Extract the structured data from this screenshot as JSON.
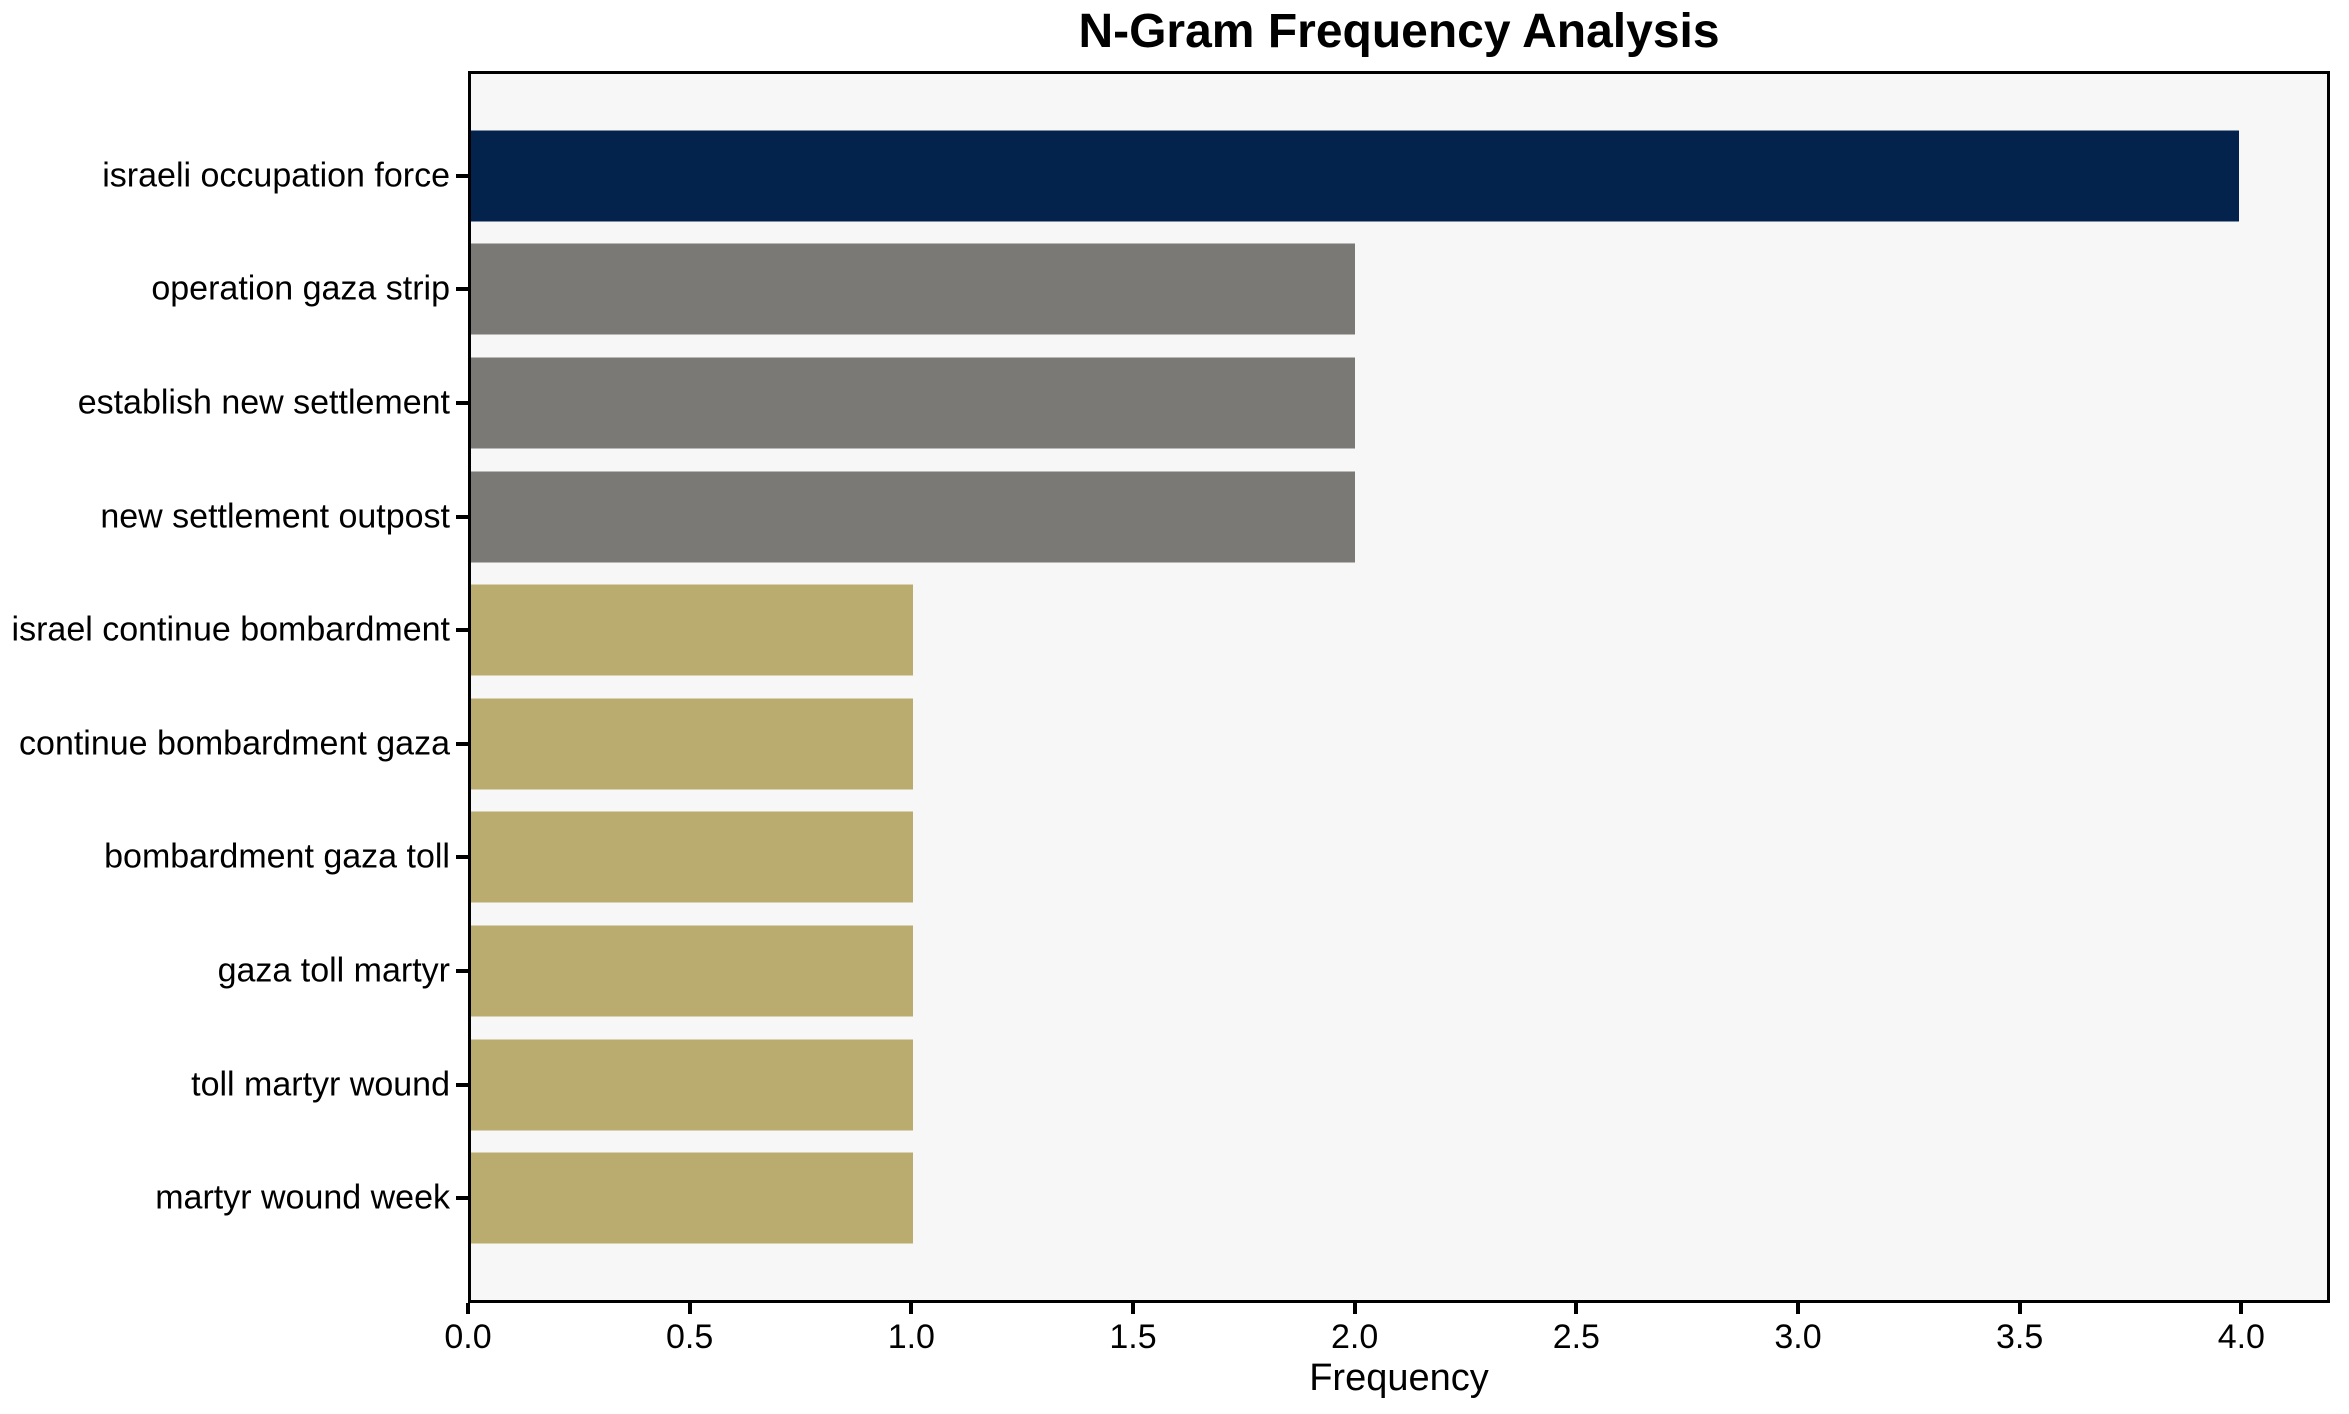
{
  "chart_data": {
    "type": "bar",
    "orientation": "horizontal",
    "title": "N-Gram Frequency Analysis",
    "xlabel": "Frequency",
    "ylabel": "",
    "categories": [
      "israeli occupation force",
      "operation gaza strip",
      "establish new settlement",
      "new settlement outpost",
      "israel continue bombardment",
      "continue bombardment gaza",
      "bombardment gaza toll",
      "gaza toll martyr",
      "toll martyr wound",
      "martyr wound week"
    ],
    "values": [
      4,
      2,
      2,
      2,
      1,
      1,
      1,
      1,
      1,
      1
    ],
    "bar_colors": [
      "#03234c",
      "#7b7975",
      "#7b7975",
      "#7b7975",
      "#b9ac6e",
      "#b9ac6e",
      "#b9ac6e",
      "#b9ac6e",
      "#b9ac6e",
      "#b9ac6e"
    ],
    "xlim": [
      0,
      4.2
    ],
    "xticks": [
      0.0,
      0.5,
      1.0,
      1.5,
      2.0,
      2.5,
      3.0,
      3.5,
      4.0
    ],
    "xtick_labels": [
      "0.0",
      "0.5",
      "1.0",
      "1.5",
      "2.0",
      "2.5",
      "3.0",
      "3.5",
      "4.0"
    ],
    "grid": false,
    "legend": false,
    "colors": {
      "plot_background": "#f7f7f7",
      "figure_background": "#ffffff",
      "spine": "#000000",
      "text": "#000000"
    }
  }
}
